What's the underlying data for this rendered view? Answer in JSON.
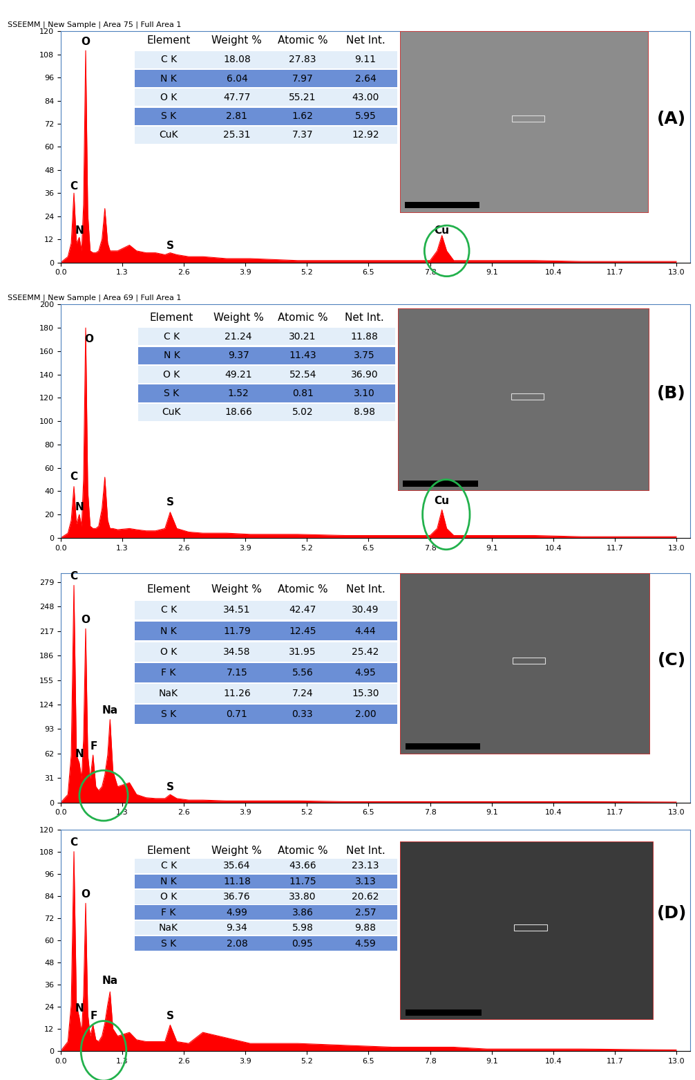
{
  "chart_data": [
    {
      "type": "area",
      "title": "SSEEMM | New Sample | Area 75 | Full Area 1",
      "subtitle": "(A)",
      "color": "#ff0000",
      "x": [
        0.0,
        0.15,
        0.22,
        0.277,
        0.33,
        0.39,
        0.44,
        0.48,
        0.525,
        0.57,
        0.62,
        0.68,
        0.74,
        0.8,
        0.87,
        0.93,
        0.99,
        1.04,
        1.1,
        1.2,
        1.45,
        1.6,
        1.8,
        2.0,
        2.2,
        2.31,
        2.45,
        2.7,
        3.0,
        3.5,
        4.0,
        5.0,
        6.0,
        7.0,
        7.8,
        7.95,
        8.05,
        8.15,
        8.3,
        9.0,
        10.0,
        11.0,
        13.0
      ],
      "values": [
        0,
        3,
        10,
        36,
        10,
        13,
        6,
        30,
        110,
        25,
        6,
        5,
        5,
        6,
        12,
        28,
        10,
        6,
        6,
        6,
        9,
        6,
        5,
        5,
        4,
        5,
        4,
        3,
        3,
        2,
        2,
        1,
        1,
        1,
        1,
        6,
        14,
        6,
        1,
        1,
        1,
        0.5,
        0.5
      ],
      "xlim": [
        0,
        13.3
      ],
      "xticks": [
        0.0,
        1.3,
        2.6,
        3.9,
        5.2,
        6.5,
        7.8,
        9.1,
        10.4,
        11.7,
        13.0
      ],
      "ylim": [
        0,
        120
      ],
      "yticks": [
        0,
        12,
        24,
        36,
        48,
        60,
        72,
        84,
        96,
        108,
        120
      ],
      "annotations": [
        {
          "text": "O",
          "x": 0.525,
          "y": 112
        },
        {
          "text": "C",
          "x": 0.277,
          "y": 37
        },
        {
          "text": "N",
          "x": 0.39,
          "y": 14
        },
        {
          "text": "S",
          "x": 2.31,
          "y": 6
        },
        {
          "text": "Cu",
          "x": 8.05,
          "y": 14
        }
      ],
      "table": {
        "columns": [
          "Element",
          "Weight %",
          "Atomic %",
          "Net Int."
        ],
        "rows": [
          [
            "C K",
            "18.08",
            "27.83",
            "9.11"
          ],
          [
            "N K",
            "6.04",
            "7.97",
            "2.64"
          ],
          [
            "O K",
            "47.77",
            "55.21",
            "43.00"
          ],
          [
            "S K",
            "2.81",
            "1.62",
            "5.95"
          ],
          [
            "CuK",
            "25.31",
            "7.37",
            "12.92"
          ]
        ]
      }
    },
    {
      "type": "area",
      "title": "SSEEMM | New Sample | Area 69 | Full Area 1",
      "subtitle": "(B)",
      "color": "#ff0000",
      "x": [
        0.0,
        0.15,
        0.22,
        0.277,
        0.33,
        0.39,
        0.44,
        0.48,
        0.525,
        0.57,
        0.62,
        0.68,
        0.74,
        0.8,
        0.87,
        0.93,
        0.99,
        1.04,
        1.1,
        1.2,
        1.45,
        1.6,
        1.8,
        2.0,
        2.2,
        2.31,
        2.45,
        2.7,
        3.0,
        3.5,
        4.0,
        5.0,
        6.0,
        7.0,
        7.8,
        7.95,
        8.05,
        8.15,
        8.3,
        9.0,
        10.0,
        11.0,
        13.0
      ],
      "values": [
        0,
        4,
        15,
        44,
        12,
        20,
        10,
        50,
        180,
        40,
        10,
        8,
        8,
        10,
        25,
        52,
        15,
        8,
        8,
        7,
        8,
        7,
        6,
        6,
        8,
        22,
        8,
        5,
        4,
        4,
        3,
        3,
        2,
        2,
        2,
        8,
        24,
        8,
        2,
        2,
        2,
        1,
        1
      ],
      "xlim": [
        0,
        13.3
      ],
      "xticks": [
        0.0,
        1.3,
        2.6,
        3.9,
        5.2,
        6.5,
        7.8,
        9.1,
        10.4,
        11.7,
        13.0
      ],
      "ylim": [
        0,
        200
      ],
      "yticks": [
        0,
        20,
        40,
        60,
        80,
        100,
        120,
        140,
        160,
        180,
        200
      ],
      "annotations": [
        {
          "text": "O",
          "x": 0.6,
          "y": 166
        },
        {
          "text": "C",
          "x": 0.277,
          "y": 48
        },
        {
          "text": "N",
          "x": 0.4,
          "y": 22
        },
        {
          "text": "S",
          "x": 2.31,
          "y": 26
        },
        {
          "text": "Cu",
          "x": 8.05,
          "y": 27
        }
      ],
      "table": {
        "columns": [
          "Element",
          "Weight %",
          "Atomic %",
          "Net Int."
        ],
        "rows": [
          [
            "C K",
            "21.24",
            "30.21",
            "11.88"
          ],
          [
            "N K",
            "9.37",
            "11.43",
            "3.75"
          ],
          [
            "O K",
            "49.21",
            "52.54",
            "36.90"
          ],
          [
            "S K",
            "1.52",
            "0.81",
            "3.10"
          ],
          [
            "CuK",
            "18.66",
            "5.02",
            "8.98"
          ]
        ]
      }
    },
    {
      "type": "area",
      "subtitle": "(C)",
      "color": "#ff0000",
      "x": [
        0.0,
        0.15,
        0.22,
        0.277,
        0.33,
        0.39,
        0.44,
        0.48,
        0.525,
        0.57,
        0.62,
        0.68,
        0.74,
        0.8,
        0.87,
        0.93,
        0.99,
        1.04,
        1.1,
        1.2,
        1.45,
        1.6,
        1.8,
        2.0,
        2.2,
        2.31,
        2.45,
        2.7,
        3.0,
        3.5,
        4.0,
        5.0,
        6.0,
        7.0,
        7.8,
        7.95,
        8.05,
        8.15,
        8.3,
        9.0,
        10.0,
        11.0,
        13.0
      ],
      "values": [
        0,
        10,
        60,
        275,
        60,
        50,
        30,
        80,
        220,
        60,
        30,
        60,
        20,
        15,
        20,
        35,
        60,
        105,
        40,
        20,
        25,
        10,
        6,
        5,
        5,
        10,
        5,
        3,
        3,
        2,
        2,
        2,
        1,
        1,
        1,
        1,
        1,
        1,
        1,
        1,
        1,
        1,
        0.5
      ],
      "xlim": [
        0,
        13.3
      ],
      "xticks": [
        0.0,
        1.3,
        2.6,
        3.9,
        5.2,
        6.5,
        7.8,
        9.1,
        10.4,
        11.7,
        13.0
      ],
      "ylim": [
        0,
        290
      ],
      "yticks": [
        0,
        31,
        62,
        93,
        124,
        155,
        186,
        217,
        248,
        279
      ],
      "annotations": [
        {
          "text": "C",
          "x": 0.277,
          "y": 280
        },
        {
          "text": "O",
          "x": 0.525,
          "y": 225
        },
        {
          "text": "Na",
          "x": 1.04,
          "y": 110
        },
        {
          "text": "N",
          "x": 0.39,
          "y": 55
        },
        {
          "text": "F",
          "x": 0.7,
          "y": 64
        },
        {
          "text": "S",
          "x": 2.31,
          "y": 13
        }
      ],
      "table": {
        "columns": [
          "Element",
          "Weight %",
          "Atomic %",
          "Net Int."
        ],
        "rows": [
          [
            "C K",
            "34.51",
            "42.47",
            "30.49"
          ],
          [
            "N K",
            "11.79",
            "12.45",
            "4.44"
          ],
          [
            "O K",
            "34.58",
            "31.95",
            "25.42"
          ],
          [
            "F K",
            "7.15",
            "5.56",
            "4.95"
          ],
          [
            "NaK",
            "11.26",
            "7.24",
            "15.30"
          ],
          [
            "S K",
            "0.71",
            "0.33",
            "2.00"
          ]
        ]
      }
    },
    {
      "type": "area",
      "subtitle": "(D)",
      "color": "#ff0000",
      "x": [
        0.0,
        0.15,
        0.22,
        0.277,
        0.33,
        0.39,
        0.44,
        0.48,
        0.525,
        0.57,
        0.62,
        0.68,
        0.74,
        0.8,
        0.87,
        0.93,
        0.99,
        1.04,
        1.1,
        1.2,
        1.45,
        1.6,
        1.8,
        2.0,
        2.2,
        2.31,
        2.45,
        2.7,
        3.0,
        3.5,
        4.0,
        5.0,
        6.0,
        7.0,
        7.8,
        7.95,
        8.05,
        8.15,
        8.3,
        9.0,
        10.0,
        11.0,
        13.0
      ],
      "values": [
        0,
        5,
        25,
        108,
        25,
        18,
        10,
        30,
        80,
        20,
        8,
        14,
        6,
        5,
        8,
        15,
        25,
        32,
        12,
        8,
        10,
        6,
        5,
        5,
        5,
        14,
        5,
        4,
        10,
        7,
        4,
        4,
        3,
        2,
        2,
        2,
        2,
        2,
        2,
        1,
        1,
        1,
        0.5
      ],
      "xlim": [
        0,
        13.3
      ],
      "xticks": [
        0.0,
        1.3,
        2.6,
        3.9,
        5.2,
        6.5,
        7.8,
        9.1,
        10.4,
        11.7,
        13.0
      ],
      "ylim": [
        0,
        120
      ],
      "yticks": [
        0,
        12,
        24,
        36,
        48,
        60,
        72,
        84,
        96,
        108,
        120
      ],
      "annotations": [
        {
          "text": "C",
          "x": 0.277,
          "y": 110
        },
        {
          "text": "O",
          "x": 0.525,
          "y": 82
        },
        {
          "text": "Na",
          "x": 1.04,
          "y": 35
        },
        {
          "text": "N",
          "x": 0.39,
          "y": 20
        },
        {
          "text": "F",
          "x": 0.7,
          "y": 16
        },
        {
          "text": "S",
          "x": 2.31,
          "y": 16
        }
      ],
      "table": {
        "columns": [
          "Element",
          "Weight %",
          "Atomic %",
          "Net Int."
        ],
        "rows": [
          [
            "C K",
            "35.64",
            "43.66",
            "23.13"
          ],
          [
            "N K",
            "11.18",
            "11.75",
            "3.13"
          ],
          [
            "O K",
            "36.76",
            "33.80",
            "20.62"
          ],
          [
            "F K",
            "4.99",
            "3.86",
            "2.57"
          ],
          [
            "NaK",
            "9.34",
            "5.98",
            "9.88"
          ],
          [
            "S K",
            "2.08",
            "0.95",
            "4.59"
          ]
        ]
      }
    }
  ]
}
